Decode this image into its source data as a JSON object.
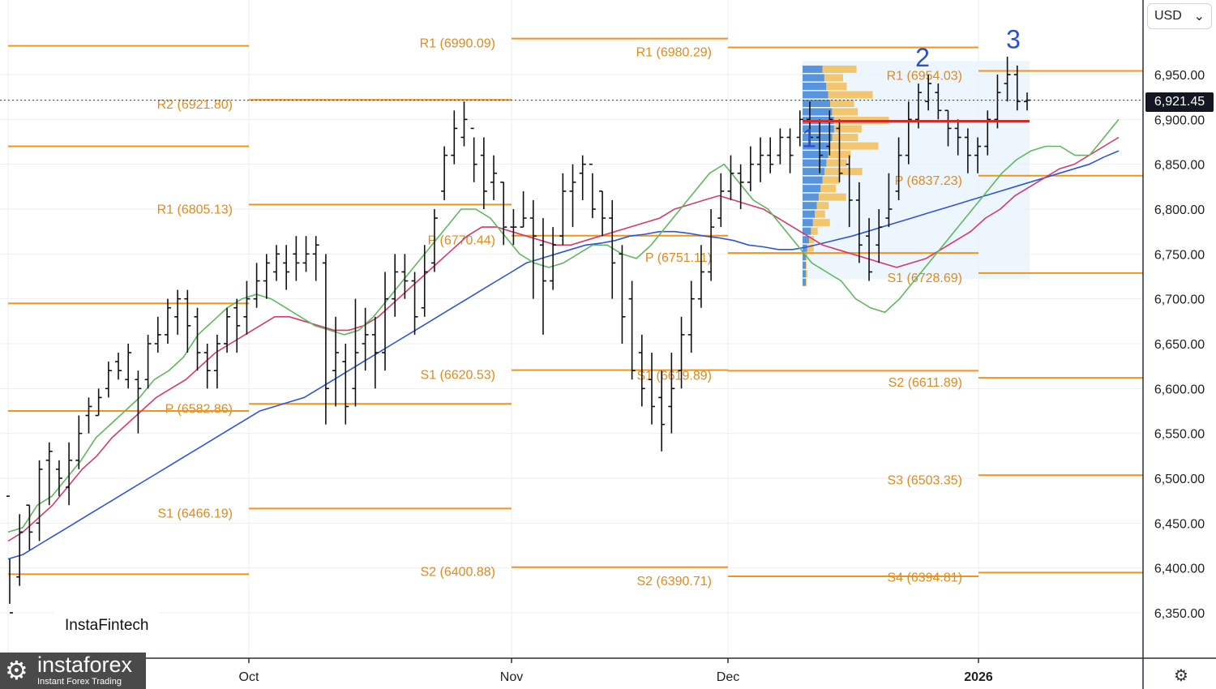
{
  "chart_data": {
    "type": "ohlc",
    "currency": "USD",
    "last_price": "6,921.45",
    "y_ticks": [
      "6,950.00",
      "6,900.00",
      "6,850.00",
      "6,800.00",
      "6,750.00",
      "6,700.00",
      "6,650.00",
      "6,600.00",
      "6,550.00",
      "6,500.00",
      "6,450.00",
      "6,400.00",
      "6,350.00"
    ],
    "x_ticks": [
      {
        "label": "Oct",
        "bold": false
      },
      {
        "label": "Nov",
        "bold": false
      },
      {
        "label": "Dec",
        "bold": false
      },
      {
        "label": "2026",
        "bold": true
      }
    ],
    "pivot_levels": [
      {
        "label": "R2 (6921.80)",
        "value": 6921.8,
        "period": "Oct"
      },
      {
        "label": "R1 (6805.13)",
        "value": 6805.13,
        "period": "Oct"
      },
      {
        "label": "P (6582.86)",
        "value": 6582.86,
        "period": "Oct"
      },
      {
        "label": "S1 (6466.19)",
        "value": 6466.19,
        "period": "Oct"
      },
      {
        "label": "R1 (6990.09)",
        "value": 6990.09,
        "period": "Nov"
      },
      {
        "label": "P (6770.44)",
        "value": 6770.44,
        "period": "Nov"
      },
      {
        "label": "S1 (6620.53)",
        "value": 6620.53,
        "period": "Nov"
      },
      {
        "label": "S2 (6400.88)",
        "value": 6400.88,
        "period": "Nov"
      },
      {
        "label": "R1 (6980.29)",
        "value": 6980.29,
        "period": "Dec"
      },
      {
        "label": "P (6751.11)",
        "value": 6751.11,
        "period": "Dec"
      },
      {
        "label": "S1 (6619.89)",
        "value": 6619.89,
        "period": "Dec"
      },
      {
        "label": "S2 (6390.71)",
        "value": 6390.71,
        "period": "Dec"
      },
      {
        "label": "R1 (6954.03)",
        "value": 6954.03,
        "period": "Jan"
      },
      {
        "label": "P (6837.23)",
        "value": 6837.23,
        "period": "Jan"
      },
      {
        "label": "S1 (6728.69)",
        "value": 6728.69,
        "period": "Jan"
      },
      {
        "label": "S2 (6611.89)",
        "value": 6611.89,
        "period": "Jan"
      },
      {
        "label": "S3 (6503.35)",
        "value": 6503.35,
        "period": "Jan"
      },
      {
        "label": "S4 (6394.81)",
        "value": 6394.81,
        "period": "Jan"
      }
    ],
    "wave_labels": [
      "1",
      "2",
      "3"
    ],
    "point_of_control": 6898,
    "ohlc": [
      [
        6480,
        6350,
        6360,
        6410
      ],
      [
        6390,
        6440,
        6460,
        6380
      ],
      [
        6470,
        6440,
        6470,
        6420
      ],
      [
        6450,
        6510,
        6520,
        6430
      ],
      [
        6520,
        6530,
        6540,
        6470
      ],
      [
        6510,
        6500,
        6520,
        6480
      ],
      [
        6490,
        6520,
        6540,
        6470
      ],
      [
        6520,
        6550,
        6570,
        6510
      ],
      [
        6570,
        6580,
        6590,
        6550
      ],
      [
        6570,
        6590,
        6600,
        6570
      ],
      [
        6600,
        6620,
        6630,
        6590
      ],
      [
        6630,
        6620,
        6640,
        6610
      ],
      [
        6610,
        6640,
        6650,
        6600
      ],
      [
        6610,
        6600,
        6620,
        6550
      ],
      [
        6610,
        6650,
        6660,
        6600
      ],
      [
        6650,
        6660,
        6680,
        6640
      ],
      [
        6660,
        6690,
        6700,
        6650
      ],
      [
        6680,
        6700,
        6710,
        6660
      ],
      [
        6700,
        6670,
        6710,
        6640
      ],
      [
        6680,
        6640,
        6690,
        6620
      ],
      [
        6640,
        6620,
        6650,
        6600
      ],
      [
        6620,
        6650,
        6660,
        6600
      ],
      [
        6650,
        6680,
        6690,
        6640
      ],
      [
        6690,
        6670,
        6700,
        6640
      ],
      [
        6680,
        6700,
        6720,
        6660
      ],
      [
        6700,
        6720,
        6740,
        6690
      ],
      [
        6720,
        6740,
        6750,
        6700
      ],
      [
        6730,
        6750,
        6760,
        6720
      ],
      [
        6740,
        6730,
        6760,
        6710
      ],
      [
        6750,
        6740,
        6770,
        6720
      ],
      [
        6740,
        6750,
        6770,
        6730
      ],
      [
        6750,
        6760,
        6770,
        6720
      ],
      [
        6740,
        6600,
        6750,
        6560
      ],
      [
        6620,
        6640,
        6680,
        6580
      ],
      [
        6630,
        6580,
        6650,
        6560
      ],
      [
        6600,
        6640,
        6700,
        6580
      ],
      [
        6650,
        6660,
        6690,
        6620
      ],
      [
        6660,
        6640,
        6680,
        6600
      ],
      [
        6640,
        6700,
        6730,
        6620
      ],
      [
        6700,
        6730,
        6750,
        6680
      ],
      [
        6730,
        6720,
        6750,
        6700
      ],
      [
        6720,
        6680,
        6730,
        6660
      ],
      [
        6690,
        6730,
        6760,
        6680
      ],
      [
        6740,
        6790,
        6800,
        6730
      ],
      [
        6820,
        6860,
        6870,
        6810
      ],
      [
        6860,
        6890,
        6910,
        6850
      ],
      [
        6880,
        6900,
        6920,
        6870
      ],
      [
        6890,
        6850,
        6880,
        6830
      ],
      [
        6860,
        6820,
        6880,
        6800
      ],
      [
        6830,
        6840,
        6860,
        6810
      ],
      [
        6830,
        6780,
        6830,
        6760
      ],
      [
        6780,
        6780,
        6800,
        6760
      ],
      [
        6780,
        6790,
        6820,
        6780
      ],
      [
        6790,
        6770,
        6810,
        6700
      ],
      [
        6760,
        6720,
        6790,
        6660
      ],
      [
        6720,
        6760,
        6780,
        6710
      ],
      [
        6770,
        6820,
        6840,
        6760
      ],
      [
        6820,
        6830,
        6850,
        6780
      ],
      [
        6840,
        6850,
        6860,
        6810
      ],
      [
        6850,
        6800,
        6840,
        6790
      ],
      [
        6820,
        6790,
        6820,
        6770
      ],
      [
        6790,
        6740,
        6810,
        6700
      ],
      [
        6750,
        6680,
        6760,
        6650
      ],
      [
        6700,
        6620,
        6720,
        6610
      ],
      [
        6640,
        6600,
        6660,
        6580
      ],
      [
        6610,
        6580,
        6640,
        6560
      ],
      [
        6590,
        6560,
        6620,
        6530
      ],
      [
        6580,
        6600,
        6640,
        6550
      ],
      [
        6620,
        6660,
        6680,
        6600
      ],
      [
        6660,
        6700,
        6720,
        6640
      ],
      [
        6700,
        6730,
        6760,
        6690
      ],
      [
        6730,
        6780,
        6800,
        6720
      ],
      [
        6790,
        6820,
        6840,
        6780
      ],
      [
        6820,
        6840,
        6860,
        6810
      ],
      [
        6840,
        6830,
        6850,
        6800
      ],
      [
        6830,
        6850,
        6870,
        6820
      ],
      [
        6850,
        6860,
        6880,
        6830
      ],
      [
        6860,
        6850,
        6880,
        6840
      ],
      [
        6860,
        6880,
        6890,
        6850
      ],
      [
        6880,
        6860,
        6890,
        6840
      ],
      [
        6880,
        6900,
        6910,
        6870
      ],
      [
        6900,
        6880,
        6920,
        6870
      ],
      [
        6880,
        6860,
        6900,
        6840
      ],
      [
        6870,
        6900,
        6910,
        6860
      ],
      [
        6890,
        6840,
        6900,
        6830
      ],
      [
        6850,
        6810,
        6860,
        6780
      ],
      [
        6810,
        6760,
        6830,
        6740
      ],
      [
        6770,
        6730,
        6790,
        6720
      ],
      [
        6760,
        6780,
        6800,
        6740
      ],
      [
        6790,
        6800,
        6840,
        6780
      ],
      [
        6820,
        6860,
        6880,
        6810
      ],
      [
        6860,
        6900,
        6920,
        6850
      ],
      [
        6900,
        6930,
        6940,
        6890
      ],
      [
        6920,
        6940,
        6950,
        6910
      ],
      [
        6930,
        6910,
        6940,
        6900
      ],
      [
        6910,
        6890,
        6910,
        6870
      ],
      [
        6890,
        6880,
        6900,
        6860
      ],
      [
        6880,
        6860,
        6890,
        6840
      ],
      [
        6860,
        6870,
        6880,
        6840
      ],
      [
        6870,
        6900,
        6910,
        6860
      ],
      [
        6900,
        6930,
        6950,
        6890
      ],
      [
        6940,
        6950,
        6970,
        6920
      ],
      [
        6950,
        6920,
        6960,
        6910
      ],
      [
        6920,
        6921.45,
        6930,
        6910
      ]
    ],
    "ema_fast": [
      6440,
      6445,
      6470,
      6480,
      6500,
      6520,
      6545,
      6560,
      6575,
      6590,
      6610,
      6620,
      6635,
      6660,
      6675,
      6690,
      6700,
      6705,
      6700,
      6690,
      6680,
      6670,
      6665,
      6660,
      6665,
      6680,
      6700,
      6720,
      6740,
      6760,
      6780,
      6800,
      6800,
      6790,
      6770,
      6750,
      6740,
      6735,
      6740,
      6750,
      6760,
      6760,
      6750,
      6745,
      6760,
      6780,
      6800,
      6820,
      6840,
      6850,
      6830,
      6810,
      6800,
      6780,
      6760,
      6740,
      6730,
      6720,
      6700,
      6690,
      6685,
      6700,
      6720,
      6740,
      6760,
      6780,
      6800,
      6820,
      6840,
      6855,
      6865,
      6870,
      6870,
      6860,
      6860,
      6880,
      6900
    ],
    "ema_mid": [
      6430,
      6440,
      6455,
      6470,
      6490,
      6510,
      6525,
      6545,
      6560,
      6575,
      6590,
      6600,
      6610,
      6625,
      6640,
      6650,
      6660,
      6670,
      6680,
      6680,
      6675,
      6670,
      6665,
      6665,
      6670,
      6680,
      6695,
      6710,
      6725,
      6740,
      6755,
      6770,
      6780,
      6780,
      6775,
      6770,
      6765,
      6760,
      6760,
      6765,
      6770,
      6775,
      6780,
      6785,
      6790,
      6800,
      6805,
      6810,
      6815,
      6810,
      6805,
      6800,
      6790,
      6780,
      6770,
      6760,
      6755,
      6750,
      6745,
      6740,
      6735,
      6740,
      6745,
      6755,
      6765,
      6775,
      6790,
      6800,
      6815,
      6825,
      6835,
      6845,
      6850,
      6860,
      6870,
      6880
    ],
    "ema_slow": [
      6410,
      6415,
      6425,
      6435,
      6445,
      6455,
      6465,
      6475,
      6485,
      6495,
      6505,
      6515,
      6525,
      6535,
      6545,
      6555,
      6565,
      6575,
      6580,
      6585,
      6590,
      6600,
      6610,
      6620,
      6630,
      6640,
      6650,
      6660,
      6670,
      6680,
      6690,
      6700,
      6710,
      6720,
      6730,
      6740,
      6745,
      6750,
      6755,
      6760,
      6762,
      6765,
      6770,
      6772,
      6775,
      6775,
      6773,
      6770,
      6768,
      6765,
      6760,
      6758,
      6755,
      6755,
      6758,
      6762,
      6766,
      6770,
      6775,
      6780,
      6785,
      6790,
      6795,
      6800,
      6805,
      6810,
      6815,
      6820,
      6825,
      6830,
      6835,
      6840,
      6845,
      6850,
      6858,
      6865
    ]
  },
  "ui": {
    "currency_label": "USD",
    "dropdown_icon": "chevron-down-icon",
    "settings_icon": "gear-icon",
    "brand_watermark": "InstaFintech",
    "brand_logo_name": "instaforex",
    "brand_logo_tagline": "Instant Forex Trading"
  }
}
